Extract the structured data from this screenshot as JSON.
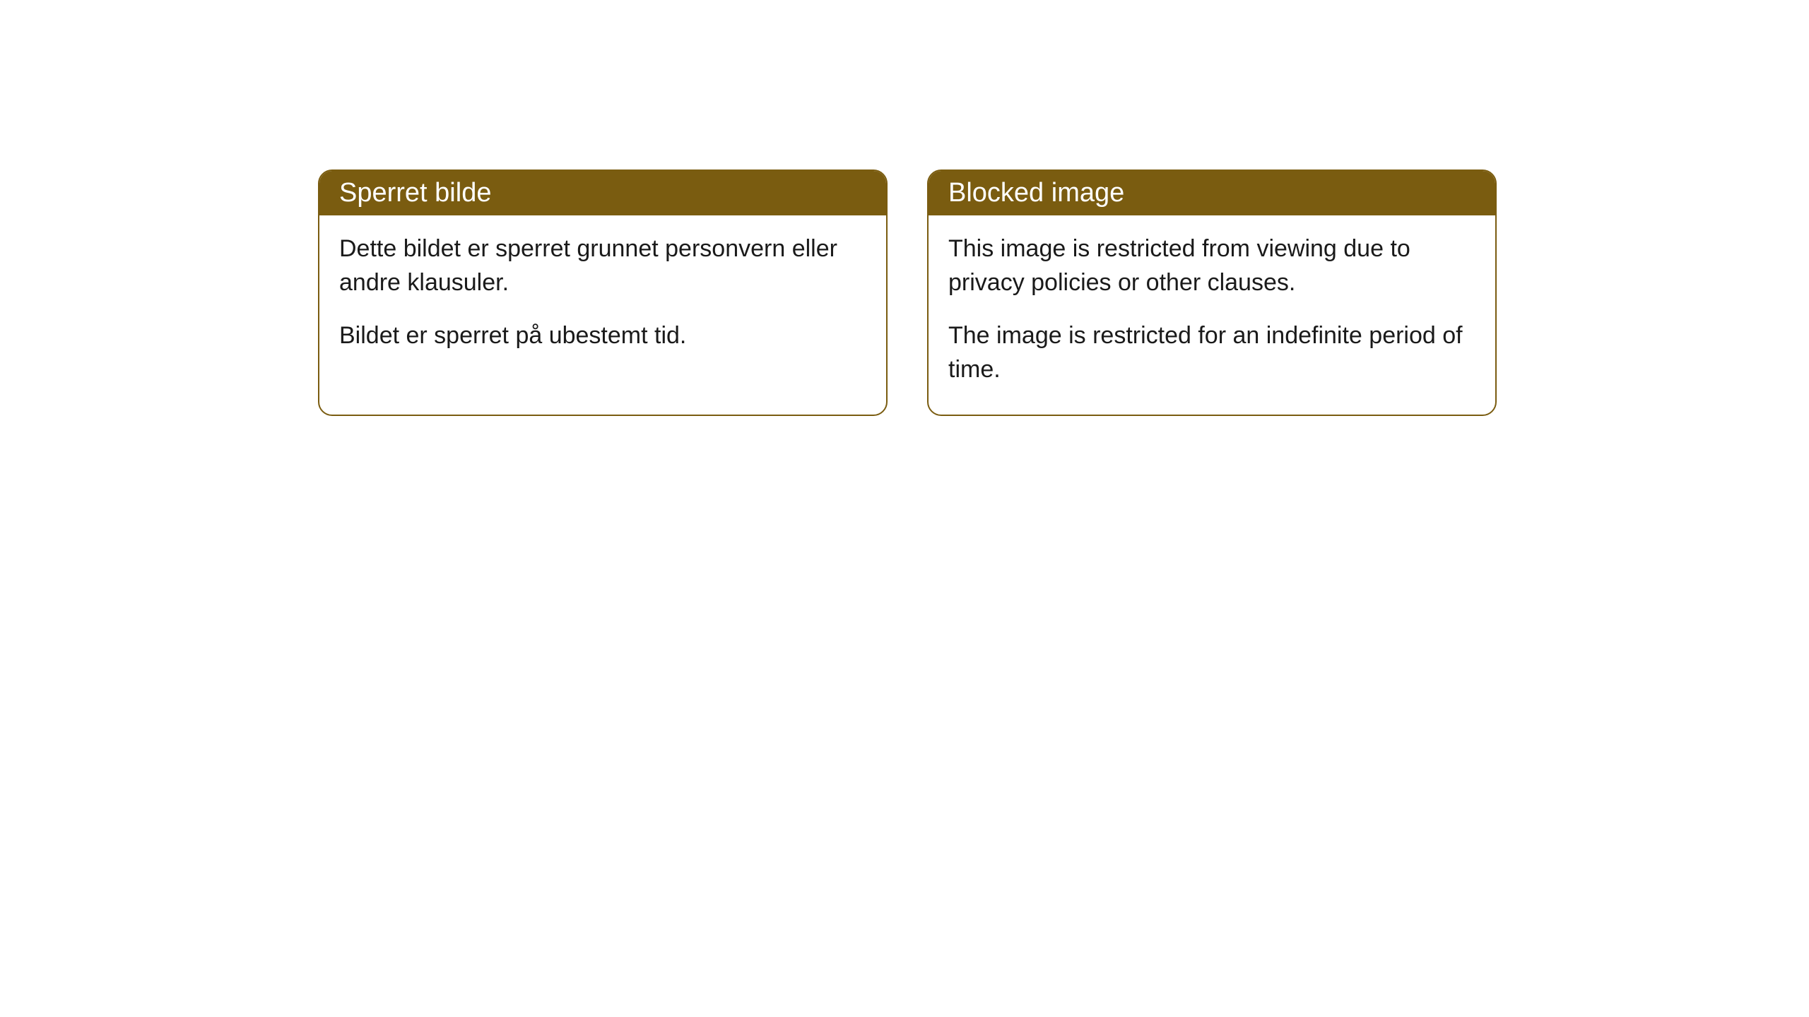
{
  "cards": [
    {
      "header": "Sperret bilde",
      "paragraph1": "Dette bildet er sperret grunnet personvern eller andre klausuler.",
      "paragraph2": "Bildet er sperret på ubestemt tid."
    },
    {
      "header": "Blocked image",
      "paragraph1": "This image is restricted from viewing due to privacy policies or other clauses.",
      "paragraph2": "The image is restricted for an indefinite period of time."
    }
  ],
  "styling": {
    "header_background_color": "#7a5c10",
    "header_text_color": "#ffffff",
    "border_color": "#7a5c10",
    "body_background_color": "#ffffff",
    "body_text_color": "#1a1a1a",
    "border_radius": 20,
    "header_font_size": 38,
    "body_font_size": 34
  }
}
